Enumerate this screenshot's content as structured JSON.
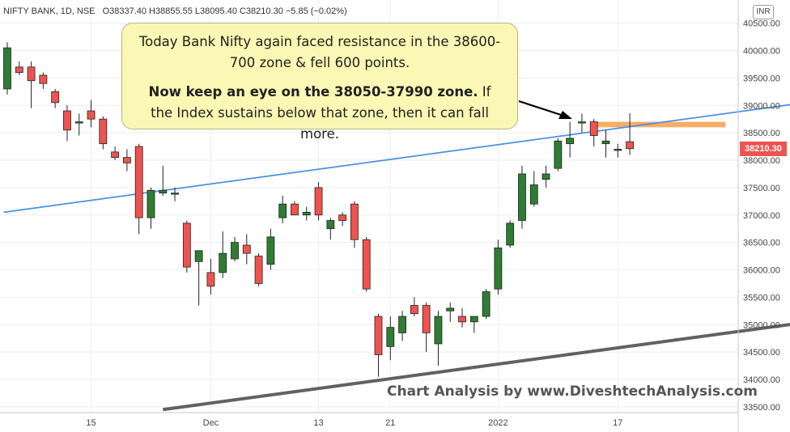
{
  "header": {
    "symbol": "NIFTY BANK, 1D, NSE",
    "ohlc": "O38337.40 H38855.55 L38095.40 C38210.30 −5.85 (−0.02%)"
  },
  "currency_badge": "INR",
  "last_price_tag": "38210.30",
  "annotation": {
    "line1": "Today Bank Nifty again faced resistance in the 38600-700 zone & fell 600 points.",
    "line2_bold": "Now keep an eye on the 38050-37990 zone.",
    "line2_rest": " If the Index sustains below that zone, then it can fall more."
  },
  "watermark": "Chart Analysis by www.DiveshtechAnalysis.com",
  "colors": {
    "up": "#2e7d32",
    "down": "#ef5350",
    "trendline_blue": "#4a90e2",
    "trendline_gray": "#616161",
    "zone": "#f5a04a",
    "annotation_bg": "#fbf7b4"
  },
  "chart_data": {
    "type": "candlestick",
    "ylim": [
      33400,
      40700
    ],
    "y_ticks": [
      33500,
      34000,
      34500,
      35000,
      35500,
      36000,
      36500,
      37000,
      37500,
      38000,
      38500,
      39000,
      39500,
      40000,
      40500
    ],
    "y_tick_labels": [
      "33500.00",
      "34000.00",
      "34500.00",
      "35000.00",
      "35500.00",
      "36000.00",
      "36500.00",
      "37000.00",
      "37500.00",
      "38000.00",
      "38500.00",
      "39000.00",
      "39500.00",
      "40000.00",
      "40500.00"
    ],
    "x_ticks": [
      {
        "label": "15",
        "index": 7
      },
      {
        "label": "Dec",
        "index": 17
      },
      {
        "label": "13",
        "index": 26
      },
      {
        "label": "21",
        "index": 32
      },
      {
        "label": "2022",
        "index": 41
      },
      {
        "label": "17",
        "index": 51
      }
    ],
    "candles": [
      {
        "o": 39300,
        "h": 40150,
        "l": 39200,
        "c": 40050
      },
      {
        "o": 39700,
        "h": 39800,
        "l": 39550,
        "c": 39600
      },
      {
        "o": 39700,
        "h": 39800,
        "l": 38950,
        "c": 39450
      },
      {
        "o": 39550,
        "h": 39600,
        "l": 39300,
        "c": 39400
      },
      {
        "o": 39250,
        "h": 39300,
        "l": 38950,
        "c": 39050
      },
      {
        "o": 38900,
        "h": 39000,
        "l": 38350,
        "c": 38550
      },
      {
        "o": 38700,
        "h": 38850,
        "l": 38450,
        "c": 38700
      },
      {
        "o": 38900,
        "h": 39100,
        "l": 38600,
        "c": 38750
      },
      {
        "o": 38750,
        "h": 38800,
        "l": 38200,
        "c": 38300
      },
      {
        "o": 38150,
        "h": 38250,
        "l": 38000,
        "c": 38050
      },
      {
        "o": 38050,
        "h": 38200,
        "l": 37800,
        "c": 37950
      },
      {
        "o": 38250,
        "h": 38300,
        "l": 36650,
        "c": 36950
      },
      {
        "o": 36950,
        "h": 37500,
        "l": 36750,
        "c": 37450
      },
      {
        "o": 37400,
        "h": 37900,
        "l": 37350,
        "c": 37450
      },
      {
        "o": 37400,
        "h": 37500,
        "l": 37250,
        "c": 37400
      },
      {
        "o": 36850,
        "h": 36900,
        "l": 35950,
        "c": 36050
      },
      {
        "o": 36150,
        "h": 36300,
        "l": 35350,
        "c": 36350
      },
      {
        "o": 35950,
        "h": 36200,
        "l": 35550,
        "c": 35700
      },
      {
        "o": 35950,
        "h": 36700,
        "l": 35850,
        "c": 36300
      },
      {
        "o": 36200,
        "h": 36600,
        "l": 36150,
        "c": 36500
      },
      {
        "o": 36450,
        "h": 36650,
        "l": 36100,
        "c": 36300
      },
      {
        "o": 36250,
        "h": 36300,
        "l": 35700,
        "c": 35750
      },
      {
        "o": 36100,
        "h": 36750,
        "l": 36000,
        "c": 36600
      },
      {
        "o": 36950,
        "h": 37350,
        "l": 36850,
        "c": 37200
      },
      {
        "o": 37200,
        "h": 37250,
        "l": 37000,
        "c": 37000
      },
      {
        "o": 37000,
        "h": 37150,
        "l": 36900,
        "c": 37050
      },
      {
        "o": 37500,
        "h": 37600,
        "l": 36900,
        "c": 37000
      },
      {
        "o": 36750,
        "h": 36950,
        "l": 36550,
        "c": 36900
      },
      {
        "o": 37000,
        "h": 37050,
        "l": 36800,
        "c": 36900
      },
      {
        "o": 37200,
        "h": 37250,
        "l": 36400,
        "c": 36550
      },
      {
        "o": 36550,
        "h": 36600,
        "l": 35600,
        "c": 35650
      },
      {
        "o": 35150,
        "h": 35200,
        "l": 34050,
        "c": 34450
      },
      {
        "o": 34600,
        "h": 35150,
        "l": 34350,
        "c": 34950
      },
      {
        "o": 34850,
        "h": 35250,
        "l": 34700,
        "c": 35150
      },
      {
        "o": 35350,
        "h": 35500,
        "l": 35150,
        "c": 35200
      },
      {
        "o": 35350,
        "h": 35400,
        "l": 34500,
        "c": 34850
      },
      {
        "o": 34650,
        "h": 35250,
        "l": 34250,
        "c": 35150
      },
      {
        "o": 35250,
        "h": 35400,
        "l": 35050,
        "c": 35300
      },
      {
        "o": 35150,
        "h": 35300,
        "l": 34950,
        "c": 35050
      },
      {
        "o": 35050,
        "h": 35150,
        "l": 34850,
        "c": 35150
      },
      {
        "o": 35150,
        "h": 35650,
        "l": 35100,
        "c": 35600
      },
      {
        "o": 35650,
        "h": 36550,
        "l": 35550,
        "c": 36400
      },
      {
        "o": 36450,
        "h": 36900,
        "l": 36400,
        "c": 36850
      },
      {
        "o": 36900,
        "h": 37900,
        "l": 36750,
        "c": 37750
      },
      {
        "o": 37200,
        "h": 37800,
        "l": 37150,
        "c": 37550
      },
      {
        "o": 37650,
        "h": 37900,
        "l": 37500,
        "c": 37750
      },
      {
        "o": 37850,
        "h": 38400,
        "l": 37800,
        "c": 38350
      },
      {
        "o": 38300,
        "h": 38700,
        "l": 38050,
        "c": 38400
      },
      {
        "o": 38700,
        "h": 38850,
        "l": 38500,
        "c": 38700
      },
      {
        "o": 38700,
        "h": 38750,
        "l": 38250,
        "c": 38450
      },
      {
        "o": 38300,
        "h": 38550,
        "l": 38050,
        "c": 38350
      },
      {
        "o": 38200,
        "h": 38300,
        "l": 38050,
        "c": 38200
      },
      {
        "o": 38337.4,
        "h": 38855.55,
        "l": 38095.4,
        "c": 38210.3
      }
    ],
    "trendlines": [
      {
        "name": "resistance",
        "from": {
          "index": -0.3,
          "price": 37050
        },
        "to": {
          "index": 67,
          "price": 39060
        }
      },
      {
        "name": "support",
        "from": {
          "index": 13,
          "price": 33450
        },
        "to": {
          "index": 67,
          "price": 35050
        }
      }
    ],
    "zones": [
      {
        "from_index": 49,
        "to_index": 60,
        "low": 38600,
        "high": 38700
      }
    ]
  }
}
